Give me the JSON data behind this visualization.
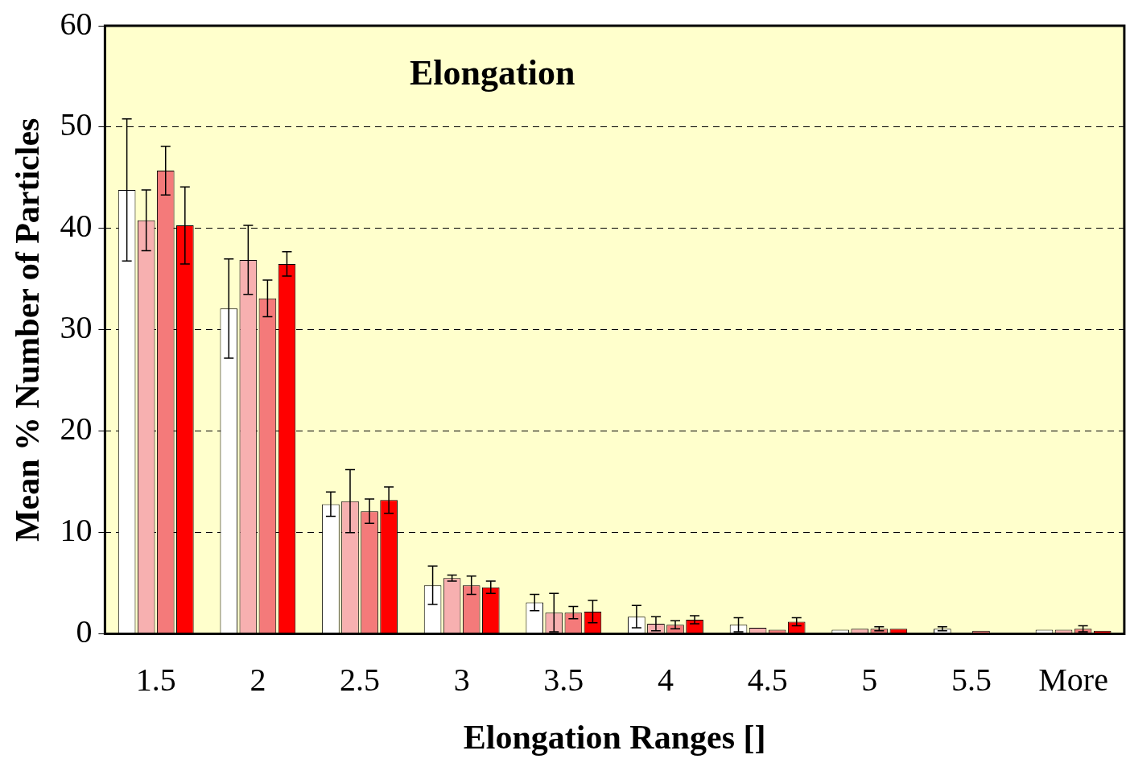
{
  "chart_data": {
    "type": "bar",
    "title": "Elongation",
    "xlabel": "Elongation Ranges []",
    "ylabel": "Mean % Number of Particles",
    "categories": [
      "1.5",
      "2",
      "2.5",
      "3",
      "3.5",
      "4",
      "4.5",
      "5",
      "5.5",
      "More"
    ],
    "ylim": [
      0,
      60
    ],
    "yticks": [
      0,
      10,
      20,
      30,
      40,
      50,
      60
    ],
    "grid": "y",
    "series": [
      {
        "color": "#ffffff",
        "values": [
          43.8,
          32.1,
          12.8,
          4.8,
          3.1,
          1.7,
          0.9,
          0.4,
          0.5,
          0.4
        ],
        "errors": [
          7,
          4.9,
          1.2,
          1.9,
          0.8,
          1.1,
          0.7,
          null,
          0.2,
          null
        ]
      },
      {
        "color": "#f7b0b0",
        "values": [
          40.8,
          36.9,
          13.1,
          5.5,
          2.1,
          1.0,
          0.6,
          0.5,
          0.0,
          0.4
        ],
        "errors": [
          3,
          3.4,
          3.1,
          0.3,
          1.9,
          0.7,
          null,
          null,
          null,
          null
        ]
      },
      {
        "color": "#f47a7a",
        "values": [
          45.7,
          33.1,
          12.1,
          4.8,
          2.1,
          0.9,
          0.4,
          0.5,
          0.3,
          0.5
        ],
        "errors": [
          2.4,
          1.8,
          1.2,
          0.9,
          0.6,
          0.4,
          null,
          0.2,
          null,
          0.3
        ]
      },
      {
        "color": "#ff0000",
        "values": [
          40.3,
          36.5,
          13.2,
          4.6,
          2.2,
          1.4,
          1.2,
          0.5,
          null,
          0.3
        ],
        "errors": [
          3.8,
          1.2,
          1.3,
          0.6,
          1.1,
          0.4,
          0.4,
          null,
          null,
          null
        ]
      }
    ]
  }
}
